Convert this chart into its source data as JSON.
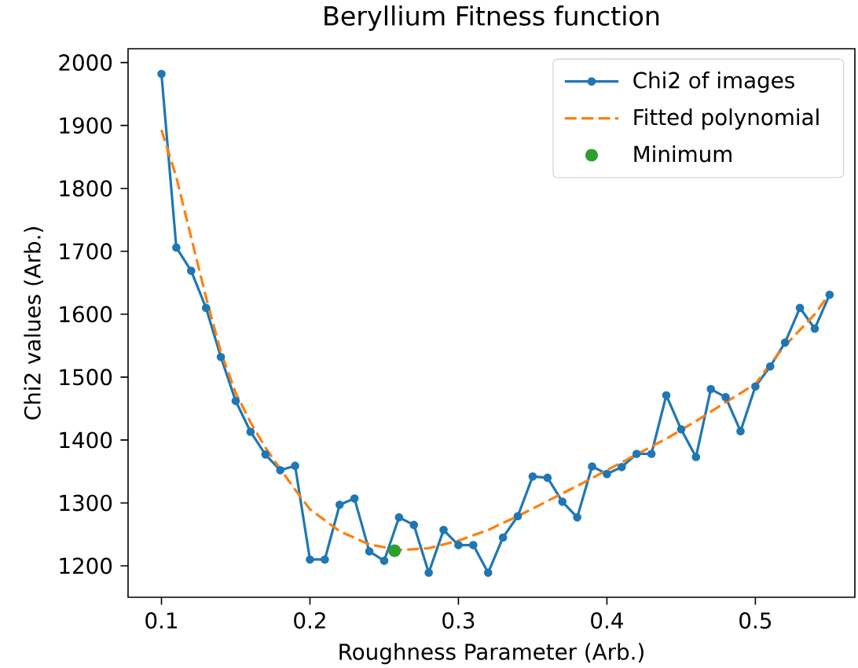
{
  "chart_data": {
    "type": "line",
    "title": "Beryllium Fitness function",
    "xlabel": "Roughness Parameter (Arb.)",
    "ylabel": "Chi2 values (Arb.)",
    "series": [
      {
        "name": "Chi2 of images",
        "color": "#1f77b4",
        "marker": "circle",
        "line_style": "solid",
        "x": [
          0.1,
          0.11,
          0.12,
          0.13,
          0.14,
          0.15,
          0.16,
          0.17,
          0.18,
          0.19,
          0.2,
          0.21,
          0.22,
          0.23,
          0.24,
          0.25,
          0.26,
          0.27,
          0.28,
          0.29,
          0.3,
          0.31,
          0.32,
          0.33,
          0.34,
          0.35,
          0.36,
          0.37,
          0.38,
          0.39,
          0.4,
          0.41,
          0.42,
          0.43,
          0.44,
          0.45,
          0.46,
          0.47,
          0.48,
          0.49,
          0.5,
          0.51,
          0.52,
          0.53,
          0.54,
          0.55
        ],
        "values": [
          1982,
          1706,
          1669,
          1610,
          1532,
          1462,
          1413,
          1377,
          1352,
          1359,
          1210,
          1210,
          1297,
          1307,
          1223,
          1208,
          1277,
          1265,
          1189,
          1257,
          1233,
          1233,
          1189,
          1245,
          1279,
          1342,
          1340,
          1302,
          1277,
          1358,
          1346,
          1357,
          1378,
          1378,
          1471,
          1417,
          1373,
          1481,
          1468,
          1414,
          1485,
          1517,
          1555,
          1610,
          1577,
          1631
        ]
      },
      {
        "name": "Fitted polynomial",
        "color": "#ff7f0e",
        "marker": "none",
        "line_style": "dashed",
        "x": [
          0.1,
          0.11,
          0.12,
          0.13,
          0.14,
          0.15,
          0.16,
          0.17,
          0.18,
          0.19,
          0.2,
          0.22,
          0.24,
          0.26,
          0.28,
          0.3,
          0.32,
          0.34,
          0.36,
          0.38,
          0.4,
          0.42,
          0.44,
          0.46,
          0.48,
          0.5,
          0.51,
          0.52,
          0.53,
          0.54,
          0.55
        ],
        "values": [
          1893,
          1818,
          1722,
          1627,
          1540,
          1475,
          1428,
          1388,
          1354,
          1321,
          1290,
          1255,
          1234,
          1225,
          1228,
          1240,
          1257,
          1279,
          1303,
          1327,
          1352,
          1377,
          1402,
          1430,
          1460,
          1489,
          1521,
          1550,
          1575,
          1600,
          1633
        ]
      },
      {
        "name": "Minimum",
        "type": "scatter",
        "color": "#2ca02c",
        "marker": "circle",
        "x": [
          0.257
        ],
        "values": [
          1224
        ]
      }
    ],
    "xlim": [
      0.0775,
      0.567
    ],
    "ylim": [
      1150,
      2022
    ],
    "xticks": [
      0.1,
      0.2,
      0.3,
      0.4,
      0.5
    ],
    "yticks": [
      1200,
      1300,
      1400,
      1500,
      1600,
      1700,
      1800,
      1900,
      2000
    ],
    "legend": "top right"
  }
}
